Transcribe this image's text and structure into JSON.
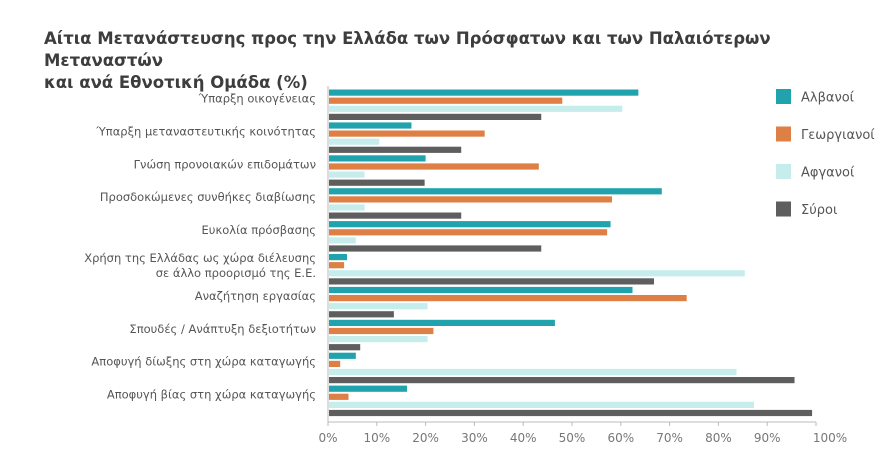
{
  "chart_data": {
    "type": "bar",
    "orientation": "horizontal",
    "title_line1": "Αίτια Μετανάστευσης προς την Ελλάδα των Πρόσφατων και των Παλαιότερων Μεταναστών",
    "title_line2": "και ανά Εθνοτική Ομάδα (%)",
    "categories": [
      [
        "Ύπαρξη οικογένειας"
      ],
      [
        "Ύπαρξη μεταναστευτικής κοινότητας"
      ],
      [
        "Γνώση προνοιακών επιδομάτων"
      ],
      [
        "Προσδοκώμενες συνθήκες διαβίωσης"
      ],
      [
        "Ευκολία πρόσβασης"
      ],
      [
        "Χρήση της Ελλάδας ως χώρα διέλευσης",
        "σε άλλο προορισμό της Ε.Ε."
      ],
      [
        "Αναζήτηση εργασίας"
      ],
      [
        "Σπουδές / Ανάπτυξη δεξιοτήτων"
      ],
      [
        "Αποφυγή δίωξης στη χώρα καταγωγής"
      ],
      [
        "Αποφυγή βίας στη χώρα καταγωγής"
      ]
    ],
    "series": [
      {
        "name": "Αλβανοί",
        "color": "#21a3ad",
        "values": [
          63.6,
          17.1,
          20.0,
          68.4,
          57.9,
          3.9,
          62.4,
          46.5,
          5.7,
          16.2
        ]
      },
      {
        "name": "Γεωργιανοί",
        "color": "#de7f45",
        "values": [
          48.0,
          32.1,
          43.2,
          58.2,
          57.2,
          3.3,
          73.5,
          21.6,
          2.5,
          4.2
        ]
      },
      {
        "name": "Αφγανοί",
        "color": "#c6ecec",
        "values": [
          60.3,
          10.5,
          7.5,
          7.5,
          5.7,
          85.4,
          20.4,
          20.4,
          83.7,
          87.3
        ]
      },
      {
        "name": "Σύροι",
        "color": "#5e5e5e",
        "values": [
          43.7,
          27.3,
          19.8,
          27.3,
          43.7,
          66.8,
          13.5,
          6.6,
          95.6,
          99.2
        ]
      }
    ],
    "xlim": [
      0,
      100
    ],
    "xticks": [
      "0%",
      "10%",
      "20%",
      "30%",
      "40%",
      "50%",
      "60%",
      "70%",
      "80%",
      "90%",
      "100%"
    ],
    "legend_position": "right",
    "grid": false
  }
}
